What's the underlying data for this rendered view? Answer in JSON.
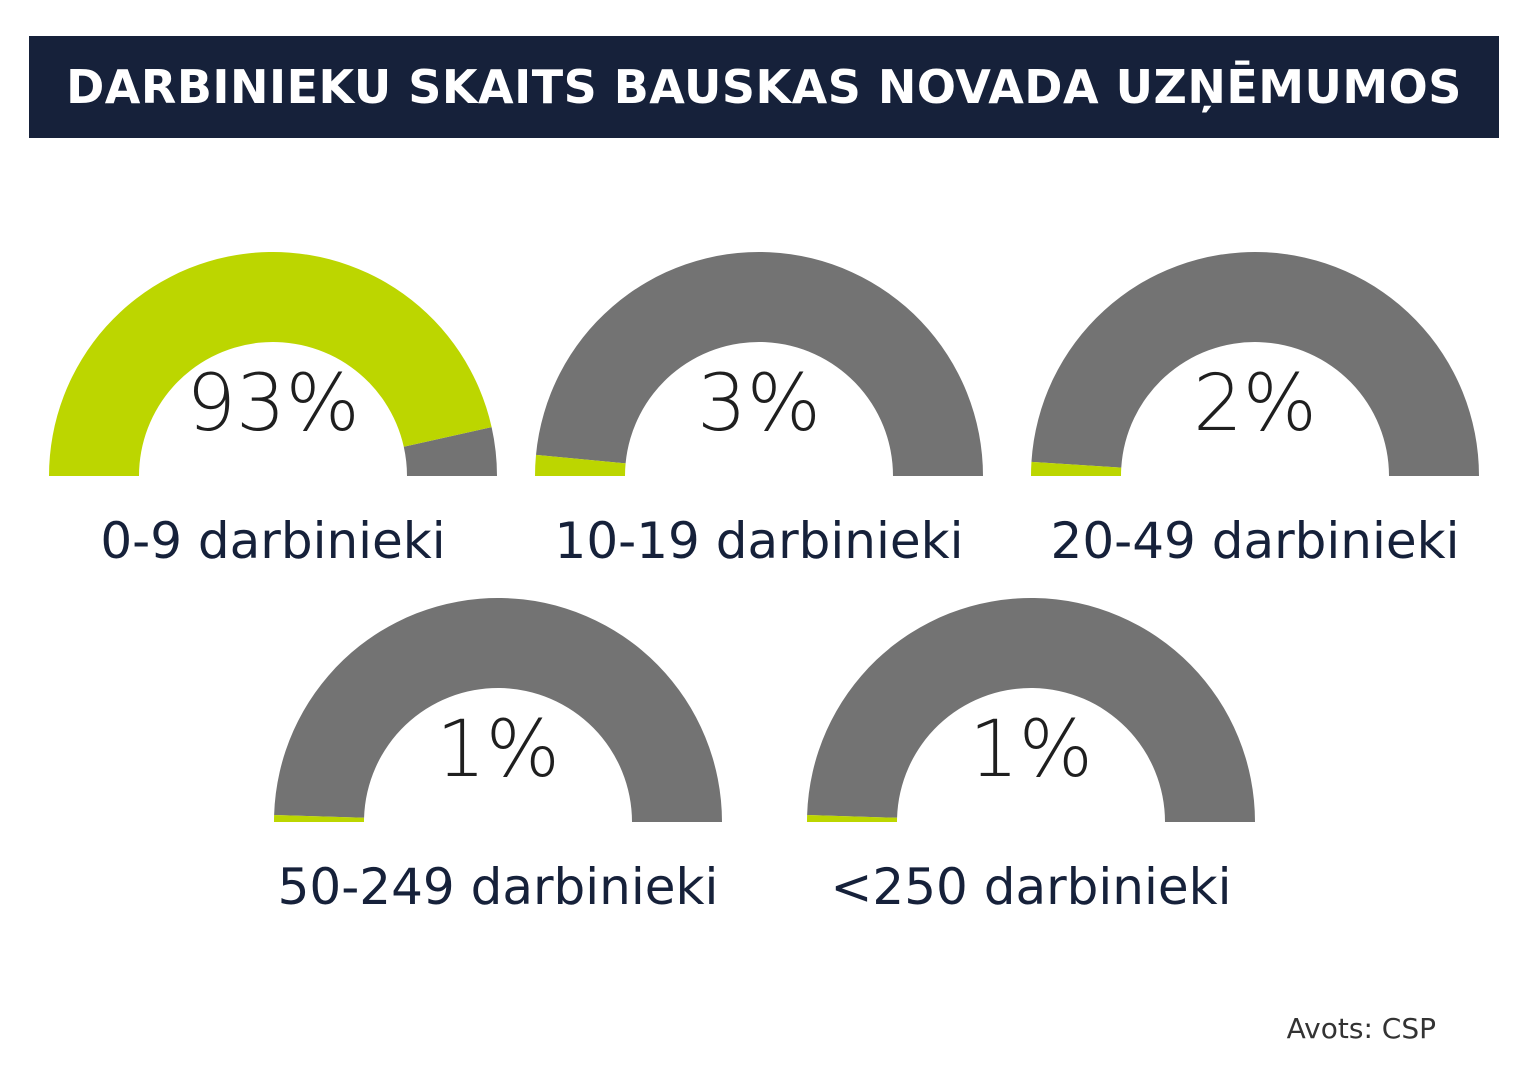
{
  "title": "DARBINIEKU SKAITS BAUSKAS NOVADA UZŅĒMUMOS",
  "source": "Avots: CSP",
  "colors": {
    "accent": "#bcd600",
    "track": "#737373",
    "title_bg": "#16213a",
    "label": "#16213a"
  },
  "chart_data": {
    "type": "gauge",
    "title": "DARBINIEKU SKAITS BAUSKAS NOVADA UZŅĒMUMOS",
    "unit": "%",
    "categories": [
      "0-9 darbinieki",
      "10-19 darbinieki",
      "20-49 darbinieki",
      "50-249 darbinieki",
      "<250 darbinieki"
    ],
    "values": [
      93,
      3,
      2,
      1,
      1
    ],
    "value_labels": [
      "93%",
      "3%",
      "2%",
      "1%",
      "1%"
    ],
    "ylim": [
      0,
      100
    ]
  }
}
